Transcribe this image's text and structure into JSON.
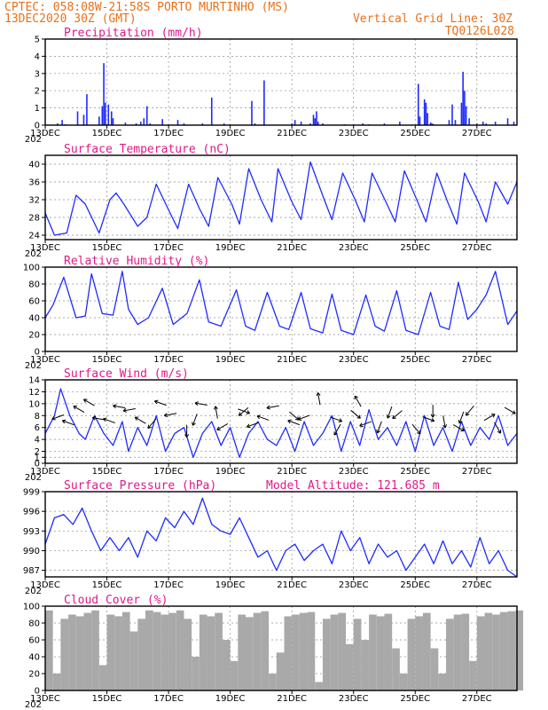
{
  "header": {
    "line1": "CPTEC:   058:08W-21:58S  PORTO MURTINHO (MS)",
    "line2": "13DEC2020 30Z (GMT)",
    "grid_note": "Vertical Grid Line: 30Z",
    "code": "TQ0126L028"
  },
  "x_axis": {
    "labels": [
      "13DEC",
      "15DEC",
      "17DEC",
      "19DEC",
      "21DEC",
      "23DEC",
      "25DEC",
      "27DEC"
    ],
    "hidden_year_label": "202",
    "range_days": [
      0,
      15.3
    ]
  },
  "colors": {
    "header": "#e8701a",
    "title": "#e0198c",
    "series": "#1f2bff",
    "cloud": "#a9a9a9",
    "grid": "#8c8c8c"
  },
  "chart_data": [
    {
      "type": "bar",
      "title": "Precipitation (mm/h)",
      "ylim": [
        0,
        5
      ],
      "yticks": [
        "0",
        "1",
        "2",
        "3",
        "4",
        "5"
      ],
      "x": [
        0.4,
        0.55,
        0.65,
        1.05,
        1.25,
        1.35,
        1.75,
        1.85,
        1.9,
        1.95,
        2.05,
        2.15,
        2.2,
        2.6,
        2.95,
        3.1,
        3.2,
        3.3,
        3.4,
        3.8,
        4.3,
        4.5,
        5.1,
        5.4,
        5.8,
        6.7,
        6.8,
        7.1,
        8.0,
        8.1,
        8.3,
        8.6,
        8.7,
        8.75,
        8.8,
        8.85,
        9.0,
        9.7,
        10.3,
        10.5,
        11.0,
        11.5,
        12.1,
        12.15,
        12.3,
        12.35,
        12.4,
        12.5,
        12.55,
        12.6,
        13.1,
        13.2,
        13.3,
        13.5,
        13.55,
        13.6,
        13.65,
        13.75,
        14.0,
        14.2,
        14.3,
        14.6,
        15.0,
        15.2
      ],
      "values": [
        0.1,
        0.3,
        0.05,
        0.8,
        0.6,
        1.8,
        0.5,
        1.1,
        3.6,
        1.3,
        1.2,
        0.8,
        0.4,
        0.15,
        0.1,
        0.2,
        0.4,
        1.1,
        0.1,
        0.35,
        0.3,
        0.1,
        0.1,
        1.6,
        0.1,
        1.4,
        0.1,
        2.6,
        0.1,
        0.3,
        0.2,
        0.1,
        0.6,
        0.4,
        0.8,
        0.2,
        0.1,
        0.05,
        0.1,
        0.05,
        0.1,
        0.2,
        2.4,
        0.5,
        1.5,
        1.3,
        0.7,
        0.15,
        0.1,
        0.05,
        0.3,
        1.2,
        0.3,
        1.3,
        3.1,
        2.0,
        1.1,
        0.4,
        0.1,
        0.2,
        0.1,
        0.2,
        0.4,
        0.2
      ]
    },
    {
      "type": "line",
      "title": "Surface Temperature (nC)",
      "ylim": [
        23,
        42
      ],
      "yticks": [
        "24",
        "28",
        "32",
        "36",
        "40"
      ],
      "x": [
        0.0,
        0.3,
        0.7,
        1.0,
        1.3,
        1.75,
        2.1,
        2.3,
        2.55,
        3.0,
        3.3,
        3.6,
        4.05,
        4.3,
        4.65,
        5.0,
        5.3,
        5.6,
        6.05,
        6.3,
        6.6,
        7.0,
        7.35,
        7.55,
        8.0,
        8.3,
        8.6,
        9.05,
        9.3,
        9.65,
        10.05,
        10.35,
        10.6,
        11.05,
        11.35,
        11.65,
        12.05,
        12.35,
        12.7,
        13.05,
        13.35,
        13.6,
        14.05,
        14.3,
        14.6,
        15.0,
        15.3
      ],
      "values": [
        29,
        24,
        24.5,
        33,
        31,
        24.5,
        32,
        33.5,
        31,
        26,
        28,
        35.5,
        29,
        25.5,
        35.5,
        30,
        26,
        37,
        31,
        26.5,
        39,
        32,
        27,
        39,
        31.5,
        27.5,
        40.5,
        32,
        27.5,
        38,
        32,
        27,
        38,
        31.5,
        27,
        38.5,
        32,
        27,
        38,
        31.5,
        26.5,
        38,
        31.5,
        27,
        36,
        31,
        36
      ]
    },
    {
      "type": "line",
      "title": "Relative Humidity (%)",
      "ylim": [
        0,
        100
      ],
      "yticks": [
        "0",
        "20",
        "40",
        "60",
        "80",
        "100"
      ],
      "x": [
        0.0,
        0.25,
        0.6,
        1.0,
        1.3,
        1.5,
        1.85,
        2.2,
        2.5,
        2.7,
        3.0,
        3.35,
        3.8,
        4.15,
        4.6,
        5.0,
        5.3,
        5.7,
        6.2,
        6.5,
        6.8,
        7.2,
        7.6,
        7.9,
        8.3,
        8.6,
        9.0,
        9.3,
        9.6,
        10.0,
        10.4,
        10.7,
        11.0,
        11.4,
        11.7,
        12.1,
        12.5,
        12.8,
        13.1,
        13.4,
        13.7,
        14.0,
        14.3,
        14.6,
        15.0,
        15.3
      ],
      "values": [
        40,
        55,
        88,
        40,
        42,
        92,
        45,
        43,
        95,
        50,
        32,
        40,
        75,
        32,
        45,
        85,
        35,
        30,
        73,
        30,
        25,
        70,
        30,
        26,
        70,
        27,
        22,
        68,
        25,
        20,
        67,
        30,
        24,
        72,
        25,
        20,
        70,
        30,
        26,
        82,
        38,
        50,
        67,
        95,
        32,
        48
      ]
    },
    {
      "type": "line",
      "title": "Surface Wind (m/s)",
      "ylim": [
        0,
        14
      ],
      "yticks": [
        "0",
        "1",
        "2",
        "4",
        "6",
        "8",
        "10",
        "12",
        "14"
      ],
      "x": [
        0.0,
        0.3,
        0.5,
        0.8,
        1.1,
        1.3,
        1.6,
        1.9,
        2.2,
        2.5,
        2.7,
        3.0,
        3.3,
        3.6,
        3.9,
        4.2,
        4.5,
        4.8,
        5.1,
        5.4,
        5.7,
        6.0,
        6.3,
        6.6,
        6.9,
        7.2,
        7.5,
        7.8,
        8.1,
        8.4,
        8.7,
        9.0,
        9.3,
        9.6,
        9.9,
        10.2,
        10.5,
        10.8,
        11.1,
        11.4,
        11.7,
        12.0,
        12.3,
        12.6,
        12.9,
        13.2,
        13.5,
        13.8,
        14.1,
        14.4,
        14.7,
        15.0,
        15.3
      ],
      "values": [
        5,
        8,
        12.5,
        8,
        5,
        4,
        8,
        5,
        3,
        7,
        2,
        6,
        3,
        8,
        2,
        5,
        6,
        1,
        5,
        7,
        3,
        6,
        1,
        5,
        7,
        4,
        3,
        6,
        2,
        7,
        3,
        5,
        8,
        2,
        7,
        3,
        9,
        4,
        6,
        3,
        7,
        2,
        8,
        3,
        6,
        2,
        7,
        3,
        6,
        4,
        8,
        3,
        5
      ]
    },
    {
      "type": "line",
      "title": "Surface Pressure (hPa)",
      "note": "Model Altitude: 121.685  m",
      "ylim": [
        986,
        999
      ],
      "yticks": [
        "987",
        "990",
        "993",
        "996",
        "999"
      ],
      "x": [
        0.0,
        0.3,
        0.6,
        0.9,
        1.2,
        1.5,
        1.8,
        2.1,
        2.4,
        2.7,
        3.0,
        3.3,
        3.6,
        3.9,
        4.2,
        4.5,
        4.8,
        5.1,
        5.4,
        5.7,
        6.0,
        6.3,
        6.6,
        6.9,
        7.2,
        7.5,
        7.8,
        8.1,
        8.4,
        8.7,
        9.0,
        9.3,
        9.6,
        9.9,
        10.2,
        10.5,
        10.8,
        11.1,
        11.4,
        11.7,
        12.0,
        12.3,
        12.6,
        12.9,
        13.2,
        13.5,
        13.8,
        14.1,
        14.4,
        14.7,
        15.0,
        15.3
      ],
      "values": [
        991,
        995,
        995.5,
        994,
        996.5,
        993,
        990,
        992,
        990,
        992,
        989,
        993,
        991.5,
        995,
        993.5,
        996,
        994,
        998,
        994,
        993,
        992.5,
        995,
        992,
        989,
        990,
        987,
        990,
        991,
        988.5,
        990,
        991,
        988,
        993,
        990,
        992,
        988,
        991,
        989,
        990,
        987,
        989,
        991,
        988,
        991.5,
        988,
        990,
        987.5,
        992,
        988,
        990,
        987,
        986
      ]
    },
    {
      "type": "bar",
      "title": "Cloud Cover (%)",
      "ylim": [
        0,
        100
      ],
      "yticks": [
        "0",
        "20",
        "40",
        "60",
        "80",
        "100"
      ],
      "x": [
        0.0,
        0.25,
        0.5,
        0.75,
        1.0,
        1.25,
        1.5,
        1.75,
        2.0,
        2.25,
        2.5,
        2.75,
        3.0,
        3.25,
        3.5,
        3.75,
        4.0,
        4.25,
        4.5,
        4.75,
        5.0,
        5.25,
        5.5,
        5.75,
        6.0,
        6.25,
        6.5,
        6.75,
        7.0,
        7.25,
        7.5,
        7.75,
        8.0,
        8.25,
        8.5,
        8.75,
        9.0,
        9.25,
        9.5,
        9.75,
        10.0,
        10.25,
        10.5,
        10.75,
        11.0,
        11.25,
        11.5,
        11.75,
        12.0,
        12.25,
        12.5,
        12.75,
        13.0,
        13.25,
        13.5,
        13.75,
        14.0,
        14.25,
        14.5,
        14.75,
        15.0,
        15.25
      ],
      "values": [
        95,
        20,
        85,
        90,
        88,
        92,
        95,
        30,
        90,
        88,
        93,
        70,
        85,
        95,
        93,
        90,
        92,
        95,
        85,
        40,
        90,
        88,
        92,
        60,
        35,
        90,
        87,
        92,
        94,
        20,
        45,
        88,
        90,
        92,
        93,
        10,
        85,
        90,
        92,
        55,
        85,
        60,
        90,
        88,
        91,
        50,
        20,
        85,
        88,
        92,
        50,
        20,
        85,
        90,
        91,
        35,
        88,
        92,
        90,
        93,
        94,
        95
      ]
    }
  ],
  "wind_arrows_deg": [
    160,
    200,
    210,
    210,
    190,
    200,
    190,
    170,
    210,
    130,
    200,
    170,
    90,
    110,
    190,
    260,
    150,
    20,
    140,
    160,
    200,
    170,
    40,
    200,
    160,
    260,
    20,
    120,
    40,
    240,
    160,
    110,
    110,
    140,
    50,
    20,
    90,
    80,
    30,
    110,
    130,
    330,
    60,
    30
  ]
}
